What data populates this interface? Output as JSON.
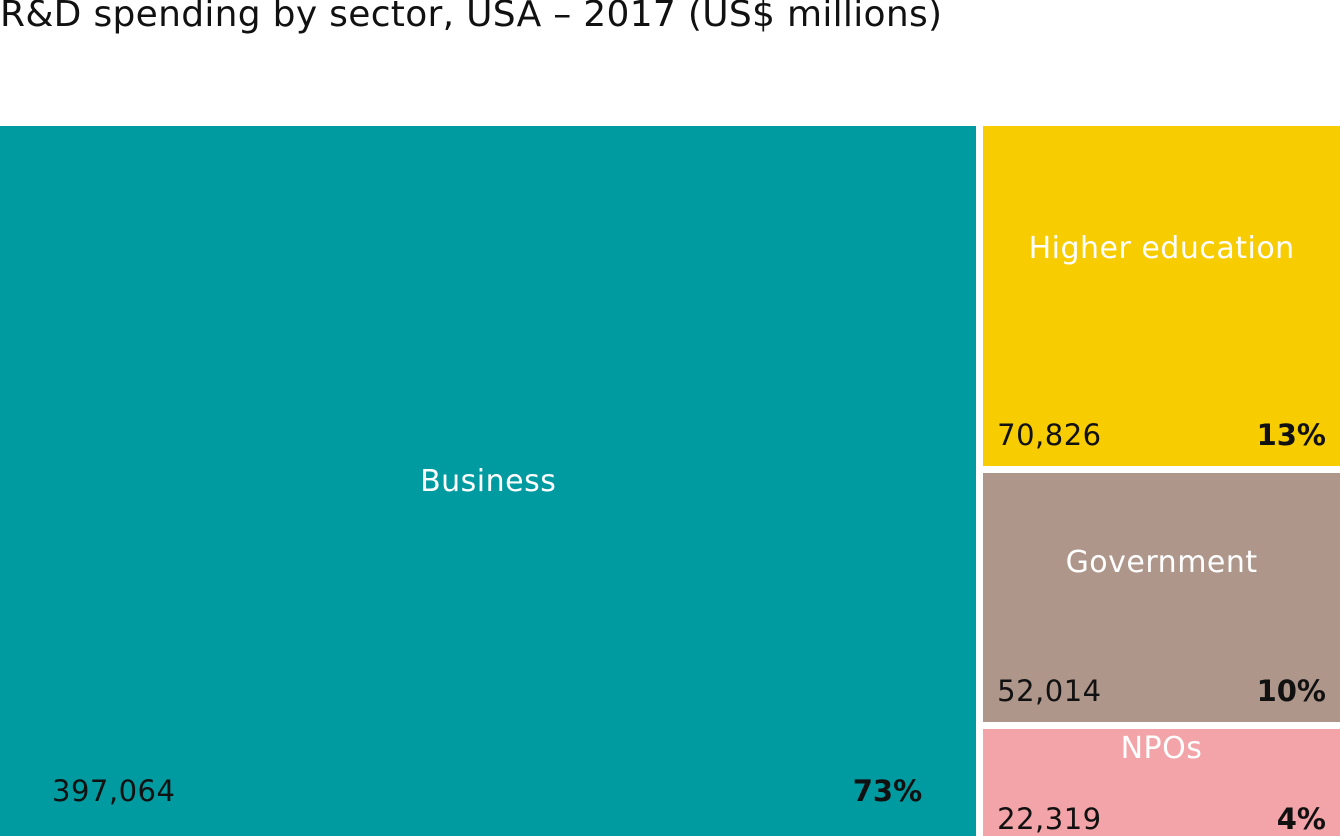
{
  "title": "R&D spending by sector, USA – 2017 (US$ millions)",
  "chart_data": {
    "type": "treemap",
    "title": "R&D spending by sector, USA – 2017 (US$ millions)",
    "sectors": [
      {
        "name": "Business",
        "value": 397064,
        "value_label": "397,064",
        "percent_label": "73%",
        "color": "#009ba1"
      },
      {
        "name": "Higher education",
        "value": 70826,
        "value_label": "70,826",
        "percent_label": "13%",
        "color": "#f7cc00"
      },
      {
        "name": "Government",
        "value": 52014,
        "value_label": "52,014",
        "percent_label": "10%",
        "color": "#ae968b"
      },
      {
        "name": "NPOs",
        "value": 22319,
        "value_label": "22,319",
        "percent_label": "4%",
        "color": "#f3a4a8"
      }
    ]
  }
}
